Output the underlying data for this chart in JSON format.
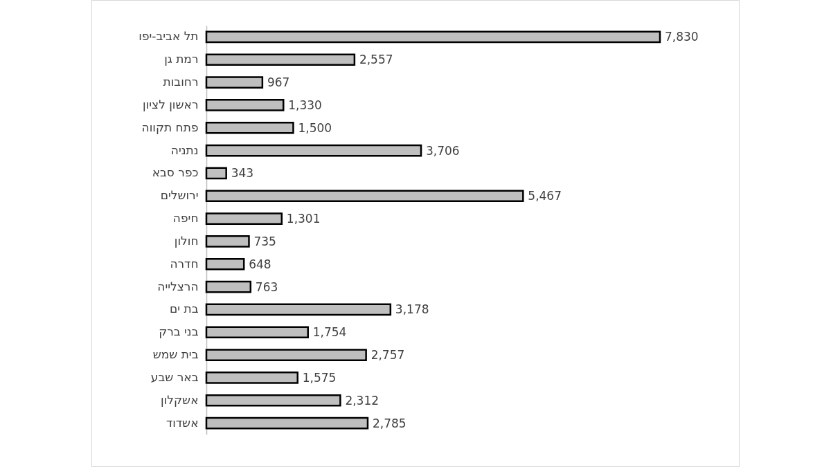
{
  "chart_data": {
    "type": "bar",
    "orientation": "horizontal",
    "categories": [
      "תל אביב-יפו",
      "רמת גן",
      "רחובות",
      "ראשון לציון",
      "פתח תקווה",
      "נתניה",
      "כפר סבא",
      "ירושלים",
      "חיפה",
      "חולון",
      "חדרה",
      "הרצלייה",
      "בת ים",
      "בני ברק",
      "בית שמש",
      "באר שבע",
      "אשקלון",
      "אשדוד"
    ],
    "values": [
      7830,
      2557,
      967,
      1330,
      1500,
      3706,
      343,
      5467,
      1301,
      735,
      648,
      763,
      3178,
      1754,
      2757,
      1575,
      2312,
      2785
    ],
    "value_labels": [
      "7,830",
      "2,557",
      "967",
      "1,330",
      "1,500",
      "3,706",
      "343",
      "5,467",
      "1,301",
      "735",
      "648",
      "763",
      "3,178",
      "1,754",
      "2,757",
      "1,575",
      "2,312",
      "2,785"
    ],
    "color": "#bfbfbf"
  }
}
